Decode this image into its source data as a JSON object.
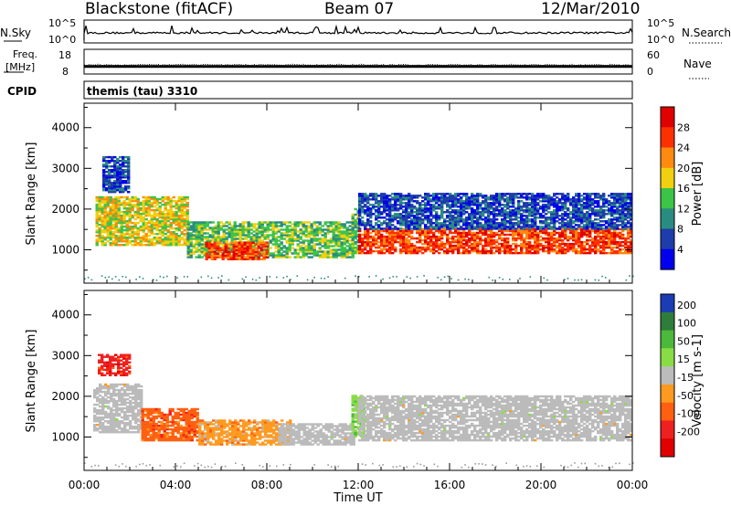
{
  "header": {
    "station": "Blackstone (fitACF)",
    "beam": "Beam 07",
    "date": "12/Mar/2010"
  },
  "top_panels": {
    "nsky_label": "N.Sky",
    "nsky_ticks": [
      "10^5",
      "10^0"
    ],
    "nsearch_label": "N.Search",
    "nsearch_ticks": [
      "10^5",
      "10^0"
    ],
    "freq_label_1": "Freq.",
    "freq_label_2": "[MHz]",
    "freq_ticks": [
      "18",
      "8"
    ],
    "freq_value_mhz": 10.5,
    "nave_label": "Nave",
    "nave_ticks": [
      "60",
      "0"
    ],
    "cpid_label": "CPID",
    "cpid_value": "themis (tau) 3310",
    "nave_value_approx": 20
  },
  "chart_data": [
    {
      "type": "heatmap",
      "panel": "power",
      "ylabel": "Slant Range [km]",
      "yticks": [
        "1000",
        "2000",
        "3000",
        "4000"
      ],
      "ylim": [
        180,
        4600
      ],
      "xlim_hours": [
        0,
        24
      ],
      "colorbar_label": "Power [dB]",
      "colorbar_ticks": [
        "4",
        "8",
        "12",
        "16",
        "20",
        "24",
        "28"
      ],
      "colorbar_range": [
        0,
        32
      ],
      "colors": [
        "#0000ee",
        "#1e3caa",
        "#2a8c80",
        "#3cc448",
        "#f0d010",
        "#ff8a10",
        "#ff3000",
        "#e00000"
      ],
      "echo_regions": [
        {
          "t": [
            0.5,
            4.5
          ],
          "range_km": [
            1100,
            2300
          ],
          "level": "high"
        },
        {
          "t": [
            0.8,
            2.0
          ],
          "range_km": [
            2400,
            3300
          ],
          "level": "low"
        },
        {
          "t": [
            4.5,
            11.8
          ],
          "range_km": [
            800,
            1700
          ],
          "level": "medium"
        },
        {
          "t": [
            5.3,
            8.0
          ],
          "range_km": [
            750,
            1200
          ],
          "level": "very high"
        },
        {
          "t": [
            11.7,
            12.0
          ],
          "range_km": [
            900,
            2000
          ],
          "level": "medium"
        },
        {
          "t": [
            12.0,
            24.0
          ],
          "range_km": [
            900,
            1500
          ],
          "level": "very high"
        },
        {
          "t": [
            12.0,
            24.0
          ],
          "range_km": [
            1500,
            2400
          ],
          "level": "low"
        }
      ]
    },
    {
      "type": "heatmap",
      "panel": "velocity",
      "ylabel": "Slant Range [km]",
      "yticks": [
        "1000",
        "2000",
        "3000",
        "4000"
      ],
      "ylim": [
        180,
        4600
      ],
      "xlim_hours": [
        0,
        24
      ],
      "xlabel": "Time UT",
      "xticks": [
        "00:00",
        "04:00",
        "08:00",
        "12:00",
        "16:00",
        "20:00",
        "00:00"
      ],
      "colorbar_label": "Velocity [m s-1]",
      "colorbar_ticks": [
        "200",
        "100",
        "50",
        "15",
        "-15",
        "-50",
        "-100",
        "-200"
      ],
      "colors": [
        "#1a3cb4",
        "#2e7d3a",
        "#4cb83c",
        "#88dd44",
        "#bbbbbb",
        "#ff9a20",
        "#ff6010",
        "#ee2020",
        "#e00000"
      ],
      "echo_regions": [
        {
          "t": [
            0.4,
            2.5
          ],
          "range_km": [
            1100,
            2300
          ],
          "level": "-15 to 15"
        },
        {
          "t": [
            0.6,
            2.0
          ],
          "range_km": [
            2500,
            3000
          ],
          "level": "-100 to -200"
        },
        {
          "t": [
            2.5,
            5.0
          ],
          "range_km": [
            900,
            1700
          ],
          "level": "-50 to -100"
        },
        {
          "t": [
            5.0,
            9.0
          ],
          "range_km": [
            800,
            1400
          ],
          "level": "-15 to -50"
        },
        {
          "t": [
            8.5,
            11.8
          ],
          "range_km": [
            800,
            1300
          ],
          "level": "-15 to 15"
        },
        {
          "t": [
            11.7,
            12.2
          ],
          "range_km": [
            1000,
            2000
          ],
          "level": "15 to 50"
        },
        {
          "t": [
            12.0,
            24.0
          ],
          "range_km": [
            900,
            2000
          ],
          "level": "-15 to 15"
        }
      ]
    }
  ]
}
